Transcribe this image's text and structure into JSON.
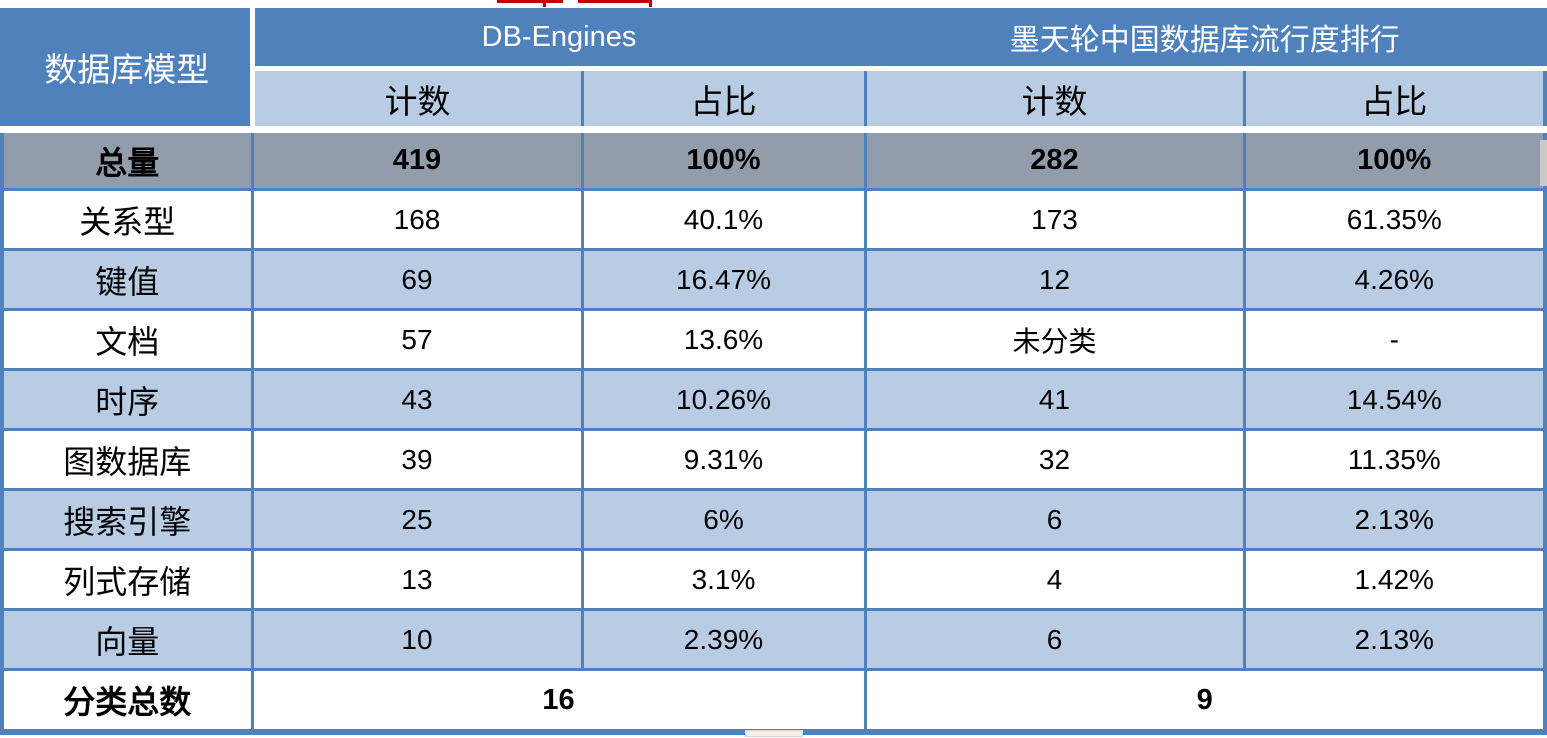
{
  "colors": {
    "header_blue": "#4f81bd",
    "subheader_light_blue": "#b8cce4",
    "row_alt_light_blue": "#b8cce4",
    "total_row_gray": "#929dab",
    "grid_border_blue": "#4f81bd",
    "artifact_red": "#c00000",
    "header_text": "#ffffff",
    "body_text": "#000000"
  },
  "table": {
    "corner_header": "数据库模型",
    "groups": [
      {
        "label": "DB-Engines"
      },
      {
        "label": "墨天轮中国数据库流行度排行"
      }
    ],
    "sub_headers": [
      "计数",
      "占比",
      "计数",
      "占比"
    ],
    "total_row": {
      "label": "总量",
      "values": [
        "419",
        "100%",
        "282",
        "100%"
      ]
    },
    "rows": [
      {
        "label": "关系型",
        "values": [
          "168",
          "40.1%",
          "173",
          "61.35%"
        ]
      },
      {
        "label": "键值",
        "values": [
          "69",
          "16.47%",
          "12",
          "4.26%"
        ]
      },
      {
        "label": "文档",
        "values": [
          "57",
          "13.6%",
          "未分类",
          "-"
        ]
      },
      {
        "label": "时序",
        "values": [
          "43",
          "10.26%",
          "41",
          "14.54%"
        ]
      },
      {
        "label": "图数据库",
        "values": [
          "39",
          "9.31%",
          "32",
          "11.35%"
        ]
      },
      {
        "label": "搜索引擎",
        "values": [
          "25",
          "6%",
          "6",
          "2.13%"
        ]
      },
      {
        "label": "列式存储",
        "values": [
          "13",
          "3.1%",
          "4",
          "1.42%"
        ]
      },
      {
        "label": "向量",
        "values": [
          "10",
          "2.39%",
          "6",
          "2.13%"
        ]
      }
    ],
    "summary_row": {
      "label": "分类总数",
      "values": [
        "16",
        "9"
      ]
    }
  },
  "chart_data": {
    "type": "table",
    "columns": [
      "数据库模型",
      "DB-Engines 计数",
      "DB-Engines 占比",
      "墨天轮中国数据库流行度排行 计数",
      "墨天轮中国数据库流行度排行 占比"
    ],
    "rows": [
      [
        "总量",
        "419",
        "100%",
        "282",
        "100%"
      ],
      [
        "关系型",
        "168",
        "40.1%",
        "173",
        "61.35%"
      ],
      [
        "键值",
        "69",
        "16.47%",
        "12",
        "4.26%"
      ],
      [
        "文档",
        "57",
        "13.6%",
        "未分类",
        "-"
      ],
      [
        "时序",
        "43",
        "10.26%",
        "41",
        "14.54%"
      ],
      [
        "图数据库",
        "39",
        "9.31%",
        "32",
        "11.35%"
      ],
      [
        "搜索引擎",
        "25",
        "6%",
        "6",
        "2.13%"
      ],
      [
        "列式存储",
        "13",
        "3.1%",
        "4",
        "1.42%"
      ],
      [
        "向量",
        "10",
        "2.39%",
        "6",
        "2.13%"
      ],
      [
        "分类总数",
        "16",
        "",
        "9",
        ""
      ]
    ]
  }
}
